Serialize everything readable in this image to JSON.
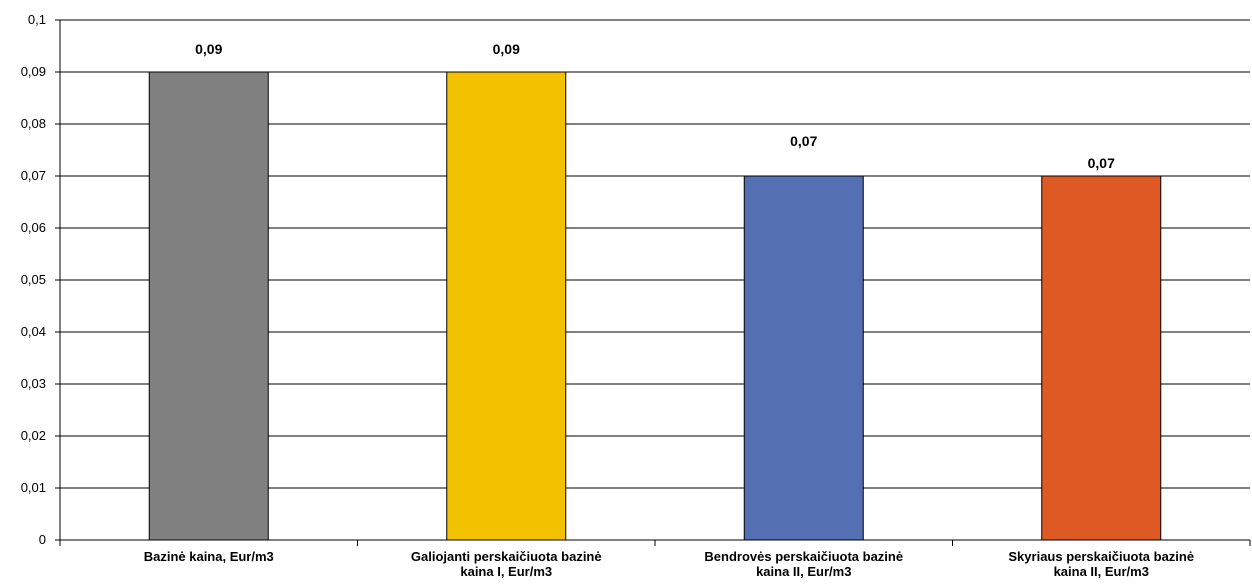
{
  "chart_data": {
    "type": "bar",
    "title": "",
    "xlabel": "",
    "ylabel": "",
    "ylim": [
      0,
      0.1
    ],
    "yticks": [
      "0",
      "0,01",
      "0,02",
      "0,03",
      "0,04",
      "0,05",
      "0,06",
      "0,07",
      "0,08",
      "0,09",
      "0,1"
    ],
    "grid": true,
    "legend": "none",
    "categories": [
      [
        "Bazinė kaina, Eur/m3"
      ],
      [
        "Galiojanti perskaičiuota bazinė",
        "kaina I, Eur/m3"
      ],
      [
        "Bendrovės perskaičiuota bazinė",
        "kaina II, Eur/m3"
      ],
      [
        "Skyriaus perskaičiuota bazinė",
        "kaina II, Eur/m3"
      ]
    ],
    "values": [
      0.09,
      0.09,
      0.07,
      0.07
    ],
    "data_labels": [
      "0,09",
      "0,09",
      "0,07",
      "0,07"
    ],
    "colors": [
      "#808080",
      "#F2C200",
      "#5470B2",
      "#DD5A25"
    ]
  }
}
